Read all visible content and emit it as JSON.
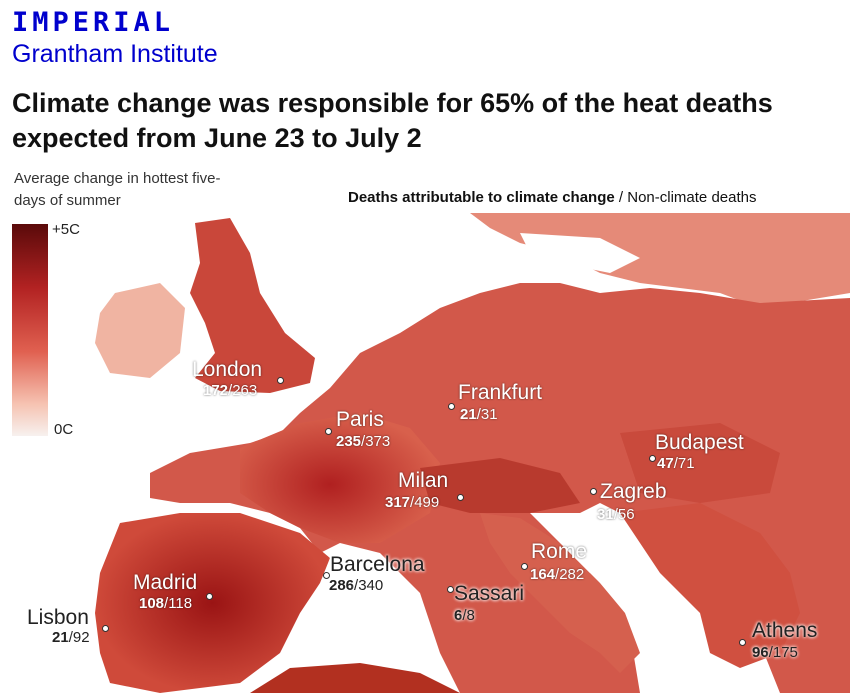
{
  "brand": {
    "name": "IMPERIAL",
    "subtitle": "Grantham Institute"
  },
  "headline": "Climate change was responsible for 65% of the heat deaths expected from June 23 to July 2",
  "legend": {
    "title": "Average change in hottest five-days of summer",
    "max_label": "+5C",
    "min_label": "0C"
  },
  "deaths_legend": {
    "bold": "Deaths attributable to climate change",
    "sep": " / ",
    "rest": "Non-climate deaths"
  },
  "colors": {
    "brand_blue": "#0000cd",
    "heat_max": "#5a0a0a",
    "heat_min": "#f7f1ef",
    "sea": "#ffffff"
  },
  "cities": [
    {
      "name": "London",
      "climate": "172",
      "sep": "/",
      "other": "263"
    },
    {
      "name": "Paris",
      "climate": "235",
      "sep": "/",
      "other": "373"
    },
    {
      "name": "Frankfurt",
      "climate": "21",
      "sep": "/",
      "other": "31"
    },
    {
      "name": "Budapest",
      "climate": "47",
      "sep": "/",
      "other": "71"
    },
    {
      "name": "Milan",
      "climate": "317",
      "sep": "/",
      "other": "499"
    },
    {
      "name": "Zagreb",
      "climate": "31",
      "sep": "/",
      "other": "56"
    },
    {
      "name": "Rome",
      "climate": "164",
      "sep": "/",
      "other": "282"
    },
    {
      "name": "Barcelona",
      "climate": "286",
      "sep": "/",
      "other": "340"
    },
    {
      "name": "Sassari",
      "climate": "6",
      "sep": "/",
      "other": "8"
    },
    {
      "name": "Madrid",
      "climate": "108",
      "sep": "/",
      "other": "118"
    },
    {
      "name": "Lisbon",
      "climate": "21",
      "sep": "/",
      "other": "92"
    },
    {
      "name": "Athens",
      "climate": "96",
      "sep": "/",
      "other": "175"
    }
  ]
}
